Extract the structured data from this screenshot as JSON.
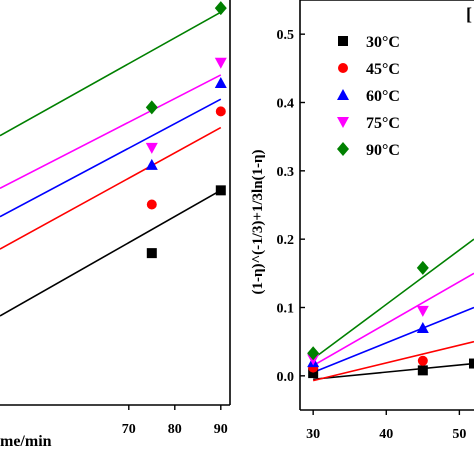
{
  "chart_data": [
    {
      "type": "scatter",
      "panel": "left",
      "xlabel": "me/min",
      "ylabel": "",
      "xlim": [
        42,
        92
      ],
      "ylim": [
        0,
        1
      ],
      "xticks": [
        70,
        80,
        90
      ],
      "yticks": [],
      "series": [
        {
          "name": "30°C",
          "color": "#000000",
          "marker": "square",
          "x": [
            75,
            90
          ],
          "y": [
            0.375,
            0.53
          ],
          "fit": [
            [
              42,
              0.22
            ],
            [
              90,
              0.53
            ]
          ]
        },
        {
          "name": "45°C",
          "color": "#ff0000",
          "marker": "circle",
          "x": [
            75,
            90
          ],
          "y": [
            0.495,
            0.725
          ],
          "fit": [
            [
              42,
              0.385
            ],
            [
              90,
              0.685
            ]
          ]
        },
        {
          "name": "60°C",
          "color": "#0000ff",
          "marker": "triangle-up",
          "x": [
            75,
            90
          ],
          "y": [
            0.593,
            0.795
          ],
          "fit": [
            [
              42,
              0.465
            ],
            [
              90,
              0.755
            ]
          ]
        },
        {
          "name": "75°C",
          "color": "#ff00ff",
          "marker": "triangle-down",
          "x": [
            75,
            90
          ],
          "y": [
            0.635,
            0.845
          ],
          "fit": [
            [
              42,
              0.535
            ],
            [
              90,
              0.815
            ]
          ]
        },
        {
          "name": "90°C",
          "color": "#008000",
          "marker": "diamond",
          "x": [
            75,
            90
          ],
          "y": [
            0.735,
            0.98
          ],
          "fit": [
            [
              42,
              0.665
            ],
            [
              90,
              0.97
            ]
          ]
        }
      ]
    },
    {
      "type": "scatter",
      "panel": "right",
      "xlabel": "",
      "ylabel": "(1-η)^(-1/3)+1/3ln(1-η)",
      "xlim": [
        28.2,
        52
      ],
      "ylim": [
        -0.05,
        0.55
      ],
      "xticks": [
        30,
        40,
        50
      ],
      "yticks": [
        0.0,
        0.1,
        0.2,
        0.3,
        0.4,
        0.5
      ],
      "grid": false,
      "legend_position": "top-left",
      "series": [
        {
          "name": "30°C",
          "color": "#000000",
          "marker": "square",
          "x": [
            30,
            45,
            52
          ],
          "y": [
            0.004,
            0.008,
            0.018
          ],
          "fit": [
            [
              30,
              -0.005
            ],
            [
              52,
              0.018
            ]
          ]
        },
        {
          "name": "45°C",
          "color": "#ff0000",
          "marker": "circle",
          "x": [
            30,
            45
          ],
          "y": [
            0.012,
            0.022
          ],
          "fit": [
            [
              30,
              -0.007
            ],
            [
              52,
              0.05
            ]
          ]
        },
        {
          "name": "60°C",
          "color": "#0000ff",
          "marker": "triangle-up",
          "x": [
            30,
            45
          ],
          "y": [
            0.02,
            0.07
          ],
          "fit": [
            [
              30,
              0.005
            ],
            [
              52,
              0.1
            ]
          ]
        },
        {
          "name": "75°C",
          "color": "#ff00ff",
          "marker": "triangle-down",
          "x": [
            30,
            45
          ],
          "y": [
            0.024,
            0.095
          ],
          "fit": [
            [
              30,
              0.015
            ],
            [
              52,
              0.15
            ]
          ]
        },
        {
          "name": "90°C",
          "color": "#008000",
          "marker": "diamond",
          "x": [
            30,
            45
          ],
          "y": [
            0.033,
            0.158
          ],
          "fit": [
            [
              30,
              0.025
            ],
            [
              52,
              0.2
            ]
          ]
        }
      ],
      "partial_text": "["
    }
  ]
}
